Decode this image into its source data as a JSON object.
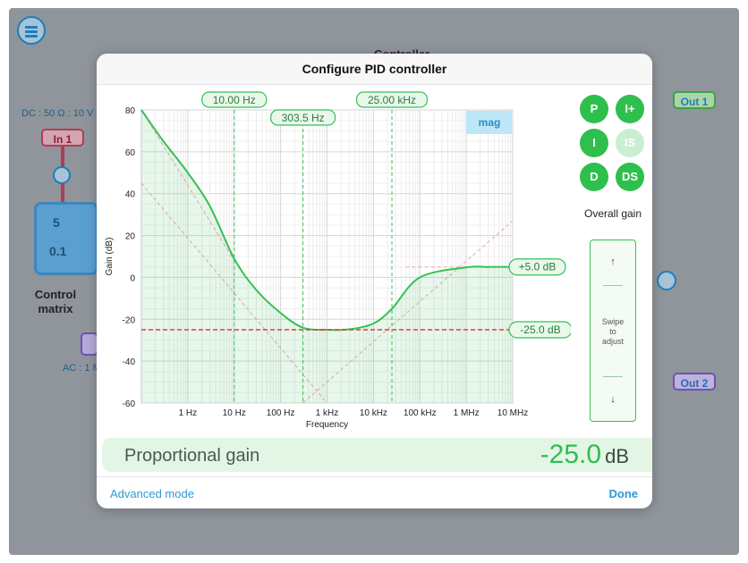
{
  "background": {
    "menu_icon": "hamburger-menu-icon",
    "controller_title": "Controller",
    "dc_label": "DC : 50 Ω : 10 V",
    "in1": "In 1",
    "ac_label": "AC : 1 M",
    "out1": "Out 1",
    "out2": "Out 2",
    "control_matrix": "Control matrix",
    "matrix_values": [
      "5",
      "0.1"
    ]
  },
  "dialog": {
    "title": "Configure PID controller",
    "toggle_tab": "mag",
    "markers": [
      {
        "label": "10.00 Hz",
        "freq": 10
      },
      {
        "label": "303.5 Hz",
        "freq": 303.5
      },
      {
        "label": "25.00 kHz",
        "freq": 25000
      }
    ],
    "level_labels": [
      {
        "label": "+5.0 dB",
        "value": 5
      },
      {
        "label": "-25.0 dB",
        "value": -25
      }
    ],
    "pid_buttons": [
      {
        "label": "P",
        "active": true
      },
      {
        "label": "I+",
        "active": true
      },
      {
        "label": "I",
        "active": true
      },
      {
        "label": "IS",
        "active": false
      },
      {
        "label": "D",
        "active": true
      },
      {
        "label": "DS",
        "active": true
      }
    ],
    "overall_gain": {
      "title": "Overall gain",
      "up": "↑",
      "down": "↓",
      "hint": [
        "Swipe",
        "to",
        "adjust"
      ]
    },
    "proportional": {
      "label": "Proportional gain",
      "value": "-25.0",
      "unit": "dB"
    },
    "advanced_mode": "Advanced mode",
    "done": "Done",
    "colors": {
      "accent": "#33bb4f",
      "link": "#2e9ad5",
      "reference": "#d9443b"
    }
  },
  "chart_data": {
    "type": "line",
    "xlabel": "Frequency",
    "ylabel": "Gain (dB)",
    "x_scale": "log",
    "xlim": [
      0.1,
      10000000
    ],
    "ylim": [
      -60,
      80
    ],
    "x_ticks": [
      "1 Hz",
      "10 Hz",
      "100 Hz",
      "1 kHz",
      "10 kHz",
      "100 kHz",
      "1 MHz",
      "10 MHz"
    ],
    "x_tick_values": [
      1,
      10,
      100,
      1000,
      10000,
      100000,
      1000000,
      10000000
    ],
    "y_ticks": [
      80,
      60,
      40,
      20,
      0,
      -20,
      -40,
      -60
    ],
    "grid": true,
    "series": [
      {
        "name": "",
        "values_x": [
          0.1,
          0.3,
          1,
          3,
          10,
          30,
          100,
          303.5,
          1000,
          3000,
          10000,
          25000,
          100000,
          1000000,
          3000000,
          10000000
        ],
        "values_y": [
          80,
          65,
          50,
          34,
          9,
          -6,
          -17,
          -24,
          -25,
          -24.8,
          -22,
          -15,
          0,
          4.8,
          5,
          5
        ]
      }
    ],
    "reference_line_y": -25
  }
}
